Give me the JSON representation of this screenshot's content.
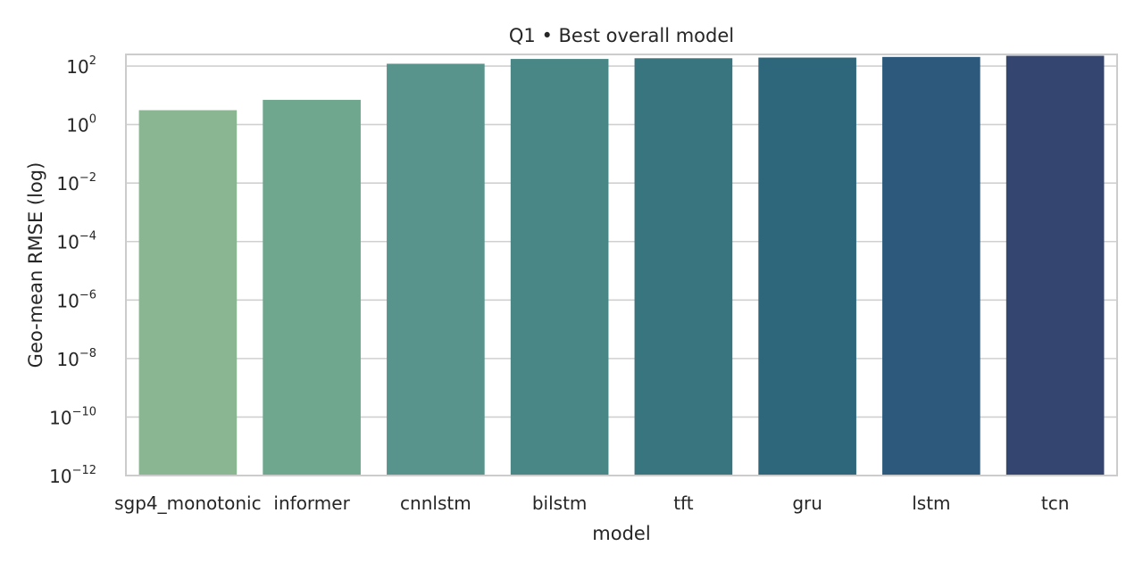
{
  "chart_data": {
    "type": "bar",
    "title": "Q1 • Best overall model",
    "xlabel": "model",
    "ylabel": "Geo-mean RMSE (log)",
    "yscale": "log",
    "ylim": [
      1e-12,
      250
    ],
    "yticks": [
      {
        "value": 1e-12,
        "base": "10",
        "exp": "−12"
      },
      {
        "value": 1e-10,
        "base": "10",
        "exp": "−10"
      },
      {
        "value": 1e-08,
        "base": "10",
        "exp": "−8"
      },
      {
        "value": 1e-06,
        "base": "10",
        "exp": "−6"
      },
      {
        "value": 0.0001,
        "base": "10",
        "exp": "−4"
      },
      {
        "value": 0.01,
        "base": "10",
        "exp": "−2"
      },
      {
        "value": 1,
        "base": "10",
        "exp": "0"
      },
      {
        "value": 100,
        "base": "10",
        "exp": "2"
      }
    ],
    "categories": [
      "sgp4_monotonic",
      "informer",
      "cnnlstm",
      "bilstm",
      "tft",
      "gru",
      "lstm",
      "tcn"
    ],
    "values": [
      3.1,
      7.0,
      120,
      175,
      185,
      195,
      205,
      225
    ],
    "colors": [
      "#8bb692",
      "#6fa68e",
      "#58948b",
      "#488786",
      "#38757f",
      "#2e677b",
      "#2d5a7c",
      "#34466f"
    ],
    "grid": true,
    "grid_axis": "y",
    "legend": "none"
  }
}
